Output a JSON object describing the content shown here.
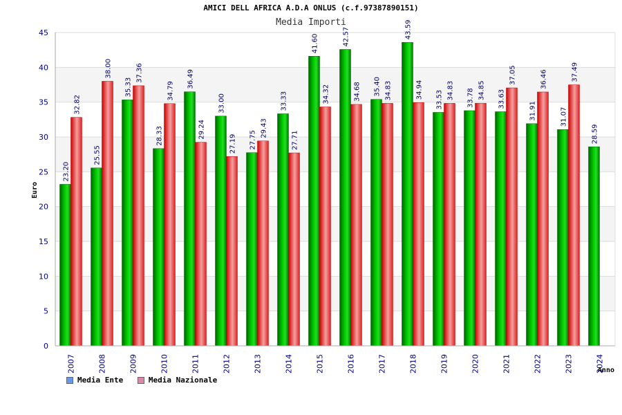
{
  "title": "AMICI DELL AFRICA A.D.A ONLUS (c.f.97387890151)",
  "subtitle": "Media Importi",
  "chart_data": {
    "type": "bar",
    "categories": [
      "2007",
      "2008",
      "2009",
      "2010",
      "2011",
      "2012",
      "2013",
      "2014",
      "2015",
      "2016",
      "2017",
      "2018",
      "2019",
      "2020",
      "2021",
      "2022",
      "2023",
      "2024"
    ],
    "series": [
      {
        "name": "Media Ente",
        "color": "#00aa00",
        "values": [
          23.2,
          25.55,
          35.33,
          28.33,
          36.49,
          33.0,
          27.75,
          33.33,
          41.6,
          42.57,
          35.4,
          43.59,
          33.53,
          33.78,
          33.63,
          31.91,
          31.07,
          28.59
        ]
      },
      {
        "name": "Media Nazionale",
        "color": "#ee2222",
        "values": [
          32.82,
          38.0,
          37.36,
          34.79,
          29.24,
          27.19,
          29.43,
          27.71,
          34.32,
          34.68,
          34.83,
          34.94,
          34.83,
          34.85,
          37.05,
          36.46,
          37.49,
          null
        ]
      }
    ],
    "data_labels": [
      [
        "23.20",
        "25.55",
        "35.33",
        "28.33",
        "36.49",
        "33.00",
        "27.75",
        "33.33",
        "41.60",
        "42.57",
        "35.40",
        "43.59",
        "33.53",
        "33.78",
        "33.63",
        "31.91",
        "31.07",
        "28.59"
      ],
      [
        "32.82",
        "38.00",
        "37.36",
        "34.79",
        "29.24",
        "27.19",
        "29.43",
        "27.71",
        "34.32",
        "34.68",
        "34.83",
        "34.94",
        "34.83",
        "34.85",
        "37.05",
        "36.46",
        "37.49",
        null
      ]
    ],
    "ylabel": "Euro",
    "xlabel": "Anno",
    "ylim": [
      0,
      45
    ],
    "yticks": [
      0,
      5,
      10,
      15,
      20,
      25,
      30,
      35,
      40,
      45
    ],
    "grid": true,
    "legend_position": "bottom-left"
  },
  "legend": [
    {
      "label": "Media Ente",
      "color": "#6699ee"
    },
    {
      "label": "Media Nazionale",
      "color": "#dd88aa"
    }
  ]
}
